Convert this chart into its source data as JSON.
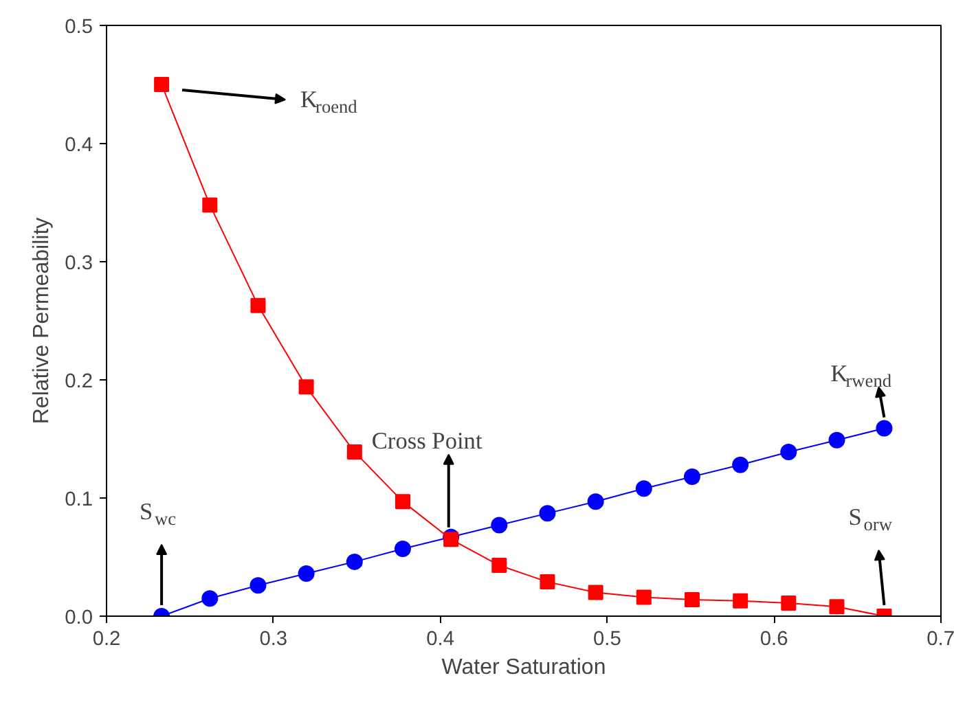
{
  "chart_data": {
    "type": "line",
    "xlabel": "Water Saturation",
    "ylabel": "Relative Permeability",
    "x": [
      0.233,
      0.2619,
      0.2908,
      0.3197,
      0.3486,
      0.3775,
      0.4064,
      0.4353,
      0.4642,
      0.4931,
      0.522,
      0.5509,
      0.5798,
      0.6087,
      0.6376,
      0.666
    ],
    "series": [
      {
        "color": "#ff0000",
        "marker": "square",
        "values": [
          0.45,
          0.348,
          0.263,
          0.194,
          0.139,
          0.097,
          0.065,
          0.043,
          0.029,
          0.02,
          0.016,
          0.014,
          0.013,
          0.011,
          0.008,
          0.0
        ]
      },
      {
        "color": "#0000ff",
        "marker": "circle",
        "values": [
          0.0,
          0.015,
          0.026,
          0.036,
          0.046,
          0.057,
          0.067,
          0.077,
          0.087,
          0.097,
          0.108,
          0.118,
          0.128,
          0.139,
          0.149,
          0.159
        ]
      }
    ],
    "xlim": [
      0.2,
      0.7
    ],
    "ylim": [
      0,
      0.5
    ],
    "xticks": [
      0.2,
      0.3,
      0.4,
      0.5,
      0.6,
      0.7
    ],
    "yticks": [
      {
        "value": 0,
        "label": "0.0"
      },
      0.1,
      0.2,
      0.3,
      0.4,
      0.5
    ],
    "grid": false,
    "line_style": "solid",
    "annotations": [
      "K$_{roend}$",
      {
        "text": "S$_{wc}$",
        "x": 0.233,
        "y": 0
      },
      {
        "text": "Cross Point",
        "x": 0.405,
        "y": 0.067
      },
      {
        "text": "K$_{rwend}$",
        "x": 0.666,
        "y": 0.159
      },
      {
        "text": "S$_{orw}$",
        "x": 0.666,
        "y": 0
      }
    ]
  }
}
